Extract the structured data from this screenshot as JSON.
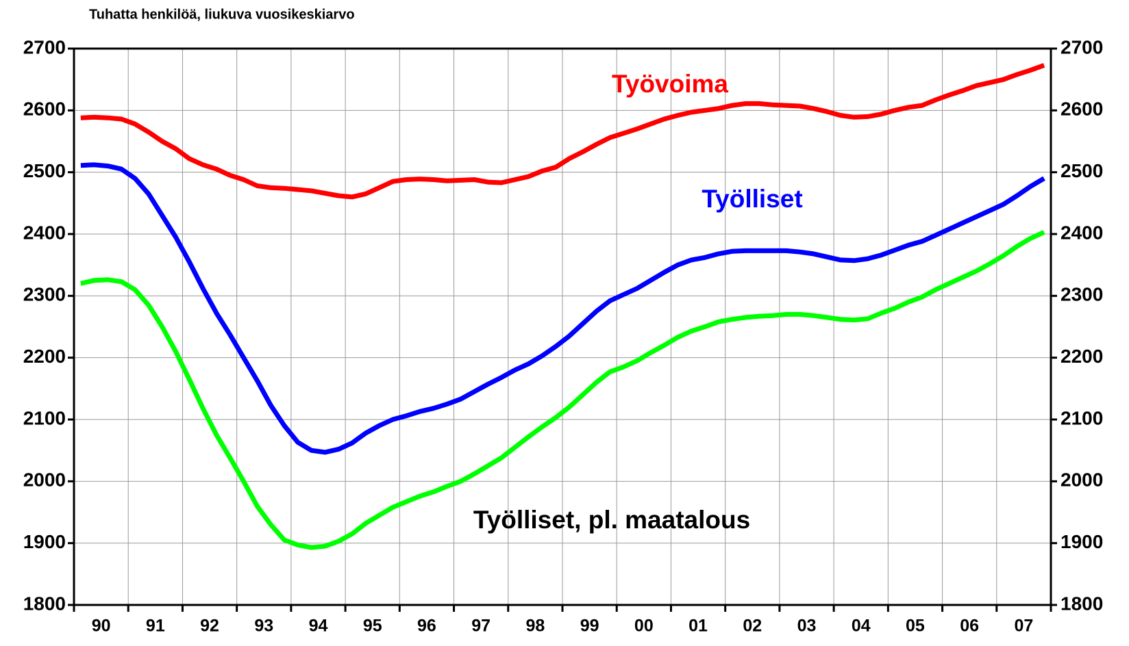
{
  "chart_data": {
    "type": "line",
    "title": "Tuhatta henkilöä, liukuva vuosikeskiarvo",
    "categories": [
      "90",
      "91",
      "92",
      "93",
      "94",
      "95",
      "96",
      "97",
      "98",
      "99",
      "00",
      "01",
      "02",
      "03",
      "04",
      "05",
      "06",
      "07"
    ],
    "ylim": [
      1800,
      2700
    ],
    "yticks": [
      1800,
      1900,
      2000,
      2100,
      2200,
      2300,
      2400,
      2500,
      2600,
      2700
    ],
    "y2lim": [
      1800,
      2700
    ],
    "y2ticks": [
      1800,
      1900,
      2000,
      2100,
      2200,
      2300,
      2400,
      2500,
      2600,
      2700
    ],
    "grid": true,
    "series": [
      {
        "name": "Työvoima",
        "color": "#ff0000",
        "values": [
          [
            2588,
            2589,
            2588,
            2586
          ],
          [
            2578,
            2565,
            2550,
            2538
          ],
          [
            2522,
            2512,
            2505,
            2495
          ],
          [
            2488,
            2478,
            2475,
            2474
          ],
          [
            2472,
            2470,
            2466,
            2462
          ],
          [
            2460,
            2465,
            2475,
            2485
          ],
          [
            2488,
            2489,
            2488,
            2486
          ],
          [
            2487,
            2488,
            2484,
            2483
          ],
          [
            2488,
            2493,
            2502,
            2508
          ],
          [
            2522,
            2533,
            2545,
            2556
          ],
          [
            2563,
            2570,
            2578,
            2586
          ],
          [
            2592,
            2597,
            2600,
            2603
          ],
          [
            2608,
            2611,
            2611,
            2609
          ],
          [
            2608,
            2607,
            2603,
            2598
          ],
          [
            2592,
            2589,
            2590,
            2594
          ],
          [
            2600,
            2605,
            2608,
            2617
          ],
          [
            2625,
            2632,
            2640,
            2645
          ],
          [
            2650,
            2658,
            2665,
            2673
          ]
        ]
      },
      {
        "name": "Työlliset",
        "color": "#0000ff",
        "values": [
          [
            2511,
            2512,
            2510,
            2505
          ],
          [
            2490,
            2465,
            2430,
            2395
          ],
          [
            2355,
            2312,
            2272,
            2237
          ],
          [
            2200,
            2163,
            2123,
            2090
          ],
          [
            2063,
            2050,
            2047,
            2052
          ],
          [
            2062,
            2078,
            2090,
            2100
          ],
          [
            2106,
            2113,
            2118,
            2125
          ],
          [
            2133,
            2145,
            2157,
            2168
          ],
          [
            2180,
            2190,
            2203,
            2218
          ],
          [
            2235,
            2255,
            2275,
            2292
          ],
          [
            2302,
            2312,
            2325,
            2338
          ],
          [
            2350,
            2358,
            2362,
            2368
          ],
          [
            2372,
            2373,
            2373,
            2373
          ],
          [
            2373,
            2371,
            2368,
            2363
          ],
          [
            2358,
            2357,
            2360,
            2366
          ],
          [
            2374,
            2382,
            2388,
            2398
          ],
          [
            2408,
            2418,
            2428,
            2438
          ],
          [
            2448,
            2462,
            2477,
            2490
          ]
        ]
      },
      {
        "name": "Työlliset, pl. maatalous",
        "color": "#00ff00",
        "values": [
          [
            2320,
            2325,
            2326,
            2323
          ],
          [
            2310,
            2285,
            2250,
            2210
          ],
          [
            2165,
            2118,
            2075,
            2038
          ],
          [
            2000,
            1960,
            1930,
            1905
          ],
          [
            1897,
            1893,
            1895,
            1903
          ],
          [
            1915,
            1932,
            1945,
            1958
          ],
          [
            1967,
            1976,
            1983,
            1992
          ],
          [
            2000,
            2012,
            2025,
            2038
          ],
          [
            2055,
            2072,
            2088,
            2103
          ],
          [
            2120,
            2140,
            2160,
            2177
          ],
          [
            2185,
            2195,
            2208,
            2220
          ],
          [
            2233,
            2243,
            2250,
            2258
          ],
          [
            2262,
            2265,
            2267,
            2268
          ],
          [
            2270,
            2270,
            2268,
            2265
          ],
          [
            2262,
            2261,
            2263,
            2272
          ],
          [
            2280,
            2290,
            2298,
            2310
          ],
          [
            2320,
            2330,
            2340,
            2352
          ],
          [
            2365,
            2380,
            2393,
            2403
          ]
        ]
      }
    ]
  }
}
